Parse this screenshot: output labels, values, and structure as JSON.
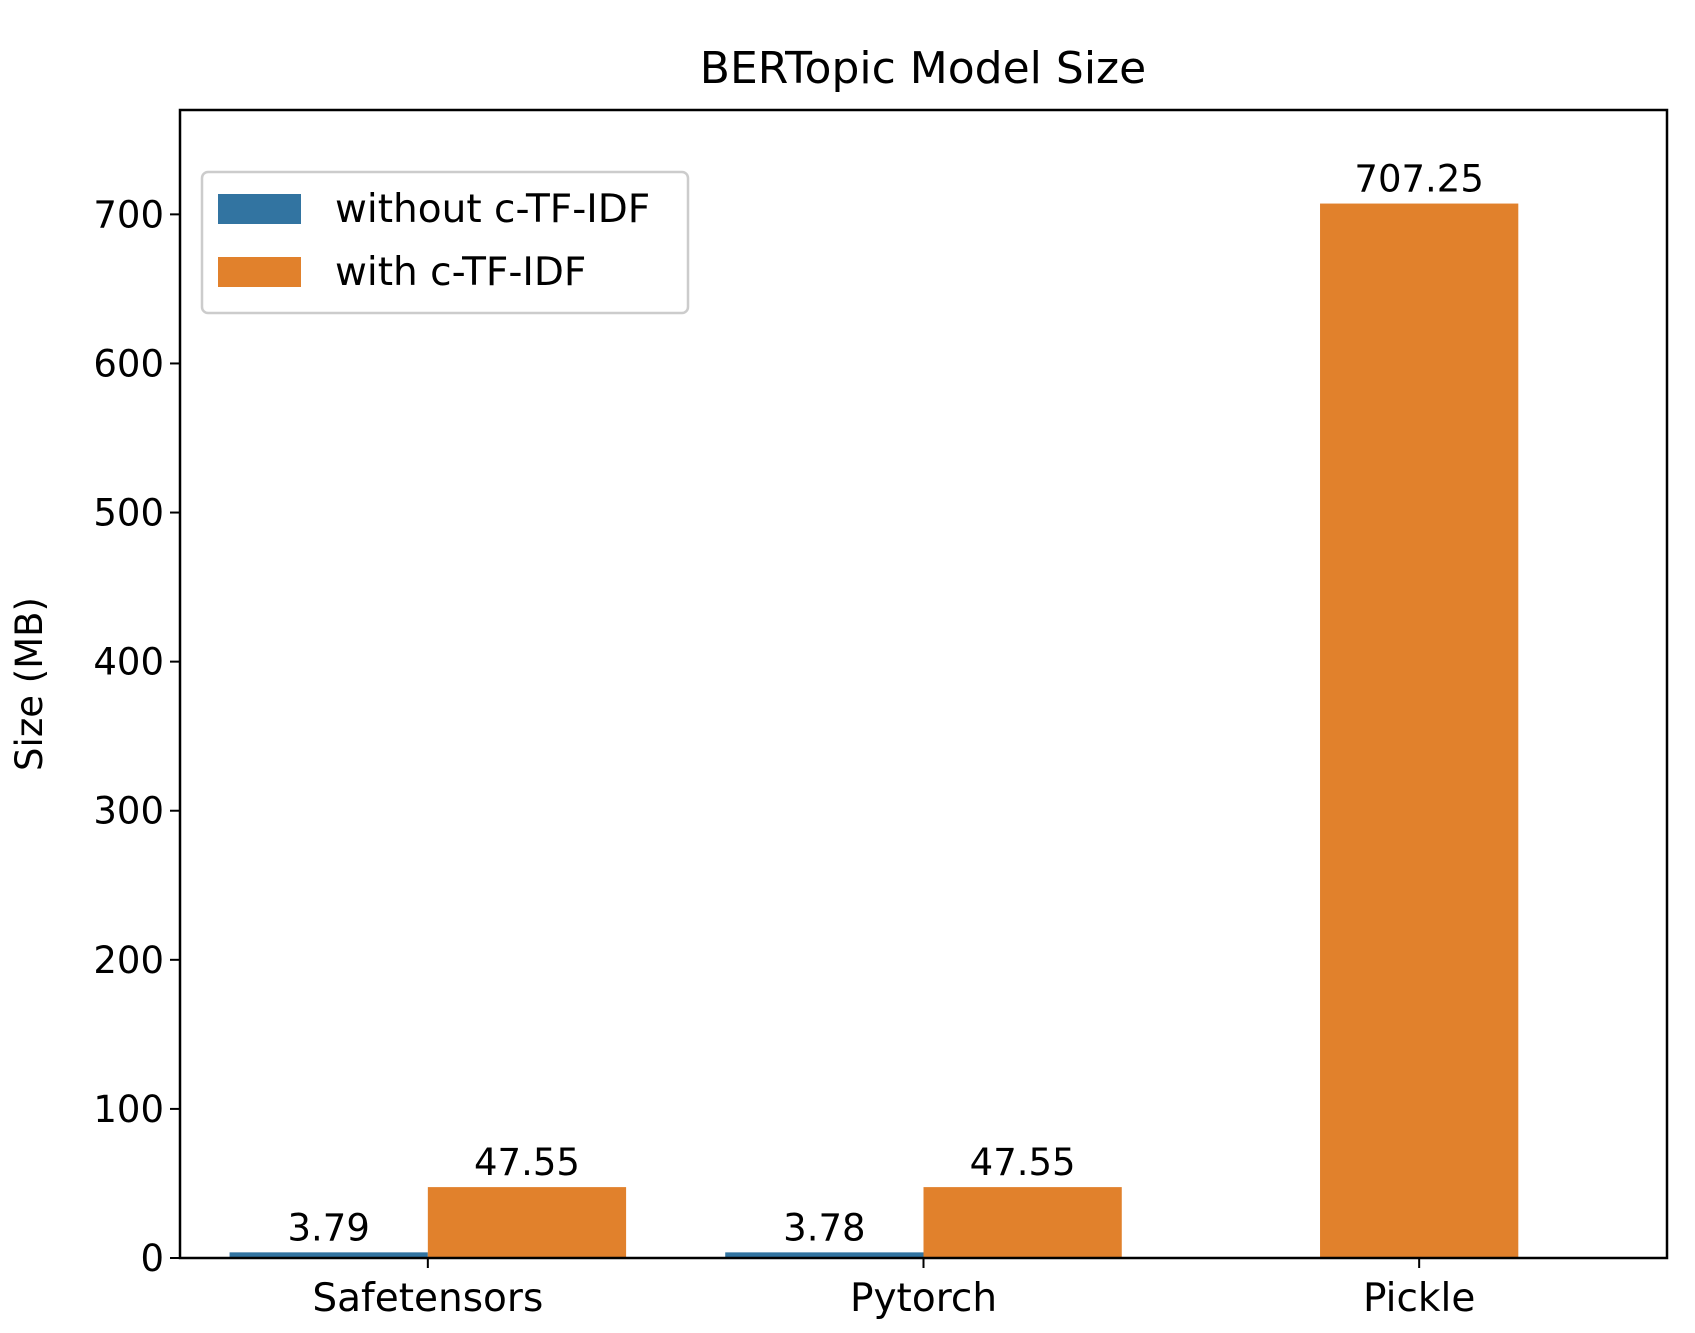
{
  "chart_data": {
    "type": "bar",
    "title": "BERTopic Model Size",
    "xlabel": "",
    "ylabel": "Size (MB)",
    "categories": [
      "Safetensors",
      "Pytorch",
      "Pickle"
    ],
    "series": [
      {
        "name": "without c-TF-IDF",
        "color": "#3274a1",
        "values": [
          3.79,
          3.78,
          null
        ],
        "labels": [
          "3.79",
          "3.78",
          ""
        ]
      },
      {
        "name": "with c-TF-IDF",
        "color": "#e1812c",
        "values": [
          47.55,
          47.55,
          707.25
        ],
        "labels": [
          "47.55",
          "47.55",
          "707.25"
        ]
      }
    ],
    "ylim": [
      0,
      770
    ],
    "yticks": [
      0,
      100,
      200,
      300,
      400,
      500,
      600,
      700
    ],
    "grid": false,
    "legend": "top-left"
  }
}
